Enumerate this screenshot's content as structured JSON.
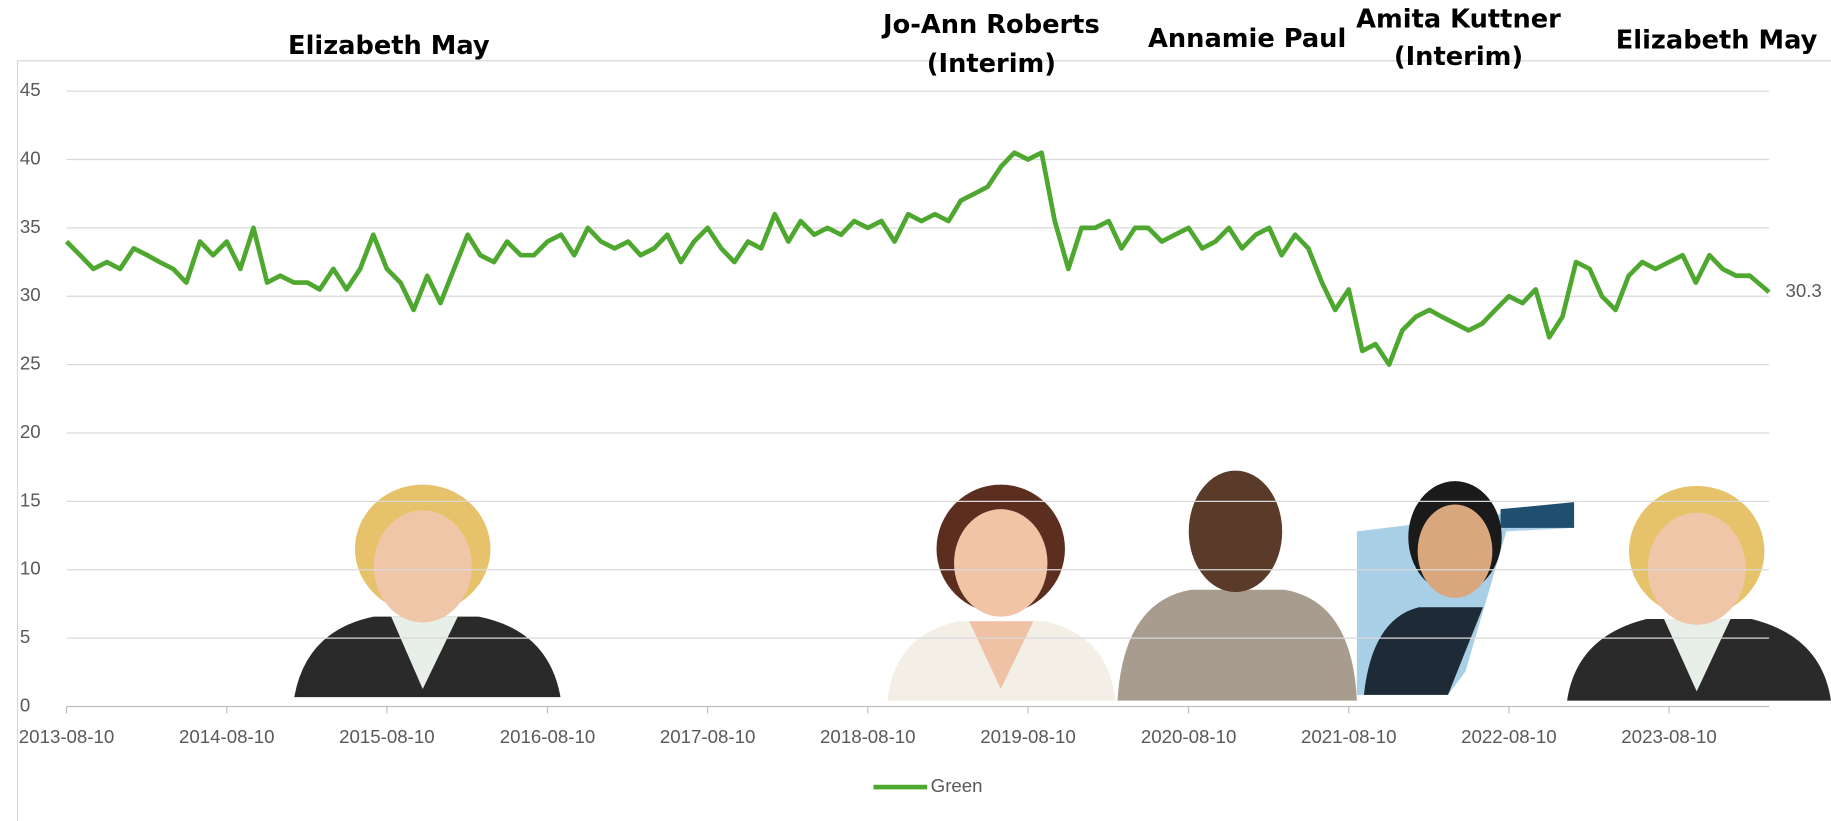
{
  "chart_data": {
    "type": "line",
    "annotations": [
      {
        "text": [
          "Elizabeth May"
        ]
      },
      {
        "text": [
          "Jo-Ann Roberts",
          "(Interim)"
        ]
      },
      {
        "text": [
          "Annamie Paul"
        ]
      },
      {
        "text": [
          "Amita Kuttner",
          "(Interim)"
        ]
      },
      {
        "text": [
          "Elizabeth May"
        ]
      }
    ],
    "x": [
      "2013-08-10",
      "2013-09-10",
      "2013-10-10",
      "2013-11-10",
      "2013-12-10",
      "2014-01-10",
      "2014-02-10",
      "2014-03-10",
      "2014-04-10",
      "2014-05-10",
      "2014-06-10",
      "2014-07-10",
      "2014-08-10",
      "2014-09-10",
      "2014-10-10",
      "2014-11-10",
      "2014-12-10",
      "2015-01-10",
      "2015-02-10",
      "2015-03-10",
      "2015-04-10",
      "2015-05-10",
      "2015-06-10",
      "2015-07-10",
      "2015-08-10",
      "2015-09-10",
      "2015-10-10",
      "2015-11-10",
      "2015-12-10",
      "2016-01-10",
      "2016-02-10",
      "2016-03-10",
      "2016-04-10",
      "2016-05-10",
      "2016-06-10",
      "2016-07-10",
      "2016-08-10",
      "2016-09-10",
      "2016-10-10",
      "2016-11-10",
      "2016-12-10",
      "2017-01-10",
      "2017-02-10",
      "2017-03-10",
      "2017-04-10",
      "2017-05-10",
      "2017-06-10",
      "2017-07-10",
      "2017-08-10",
      "2017-09-10",
      "2017-10-10",
      "2017-11-10",
      "2017-12-10",
      "2018-01-10",
      "2018-02-10",
      "2018-03-10",
      "2018-04-10",
      "2018-05-10",
      "2018-06-10",
      "2018-07-10",
      "2018-08-10",
      "2018-09-10",
      "2018-10-10",
      "2018-11-10",
      "2018-12-10",
      "2019-01-10",
      "2019-02-10",
      "2019-03-10",
      "2019-04-10",
      "2019-05-10",
      "2019-06-10",
      "2019-07-10",
      "2019-08-10",
      "2019-09-10",
      "2019-10-10",
      "2019-11-10",
      "2019-12-10",
      "2020-01-10",
      "2020-02-10",
      "2020-03-10",
      "2020-04-10",
      "2020-05-10",
      "2020-06-10",
      "2020-07-10",
      "2020-08-10",
      "2020-09-10",
      "2020-10-10",
      "2020-11-10",
      "2020-12-10",
      "2021-01-10",
      "2021-02-10",
      "2021-03-10",
      "2021-04-10",
      "2021-05-10",
      "2021-06-10",
      "2021-07-10",
      "2021-08-10",
      "2021-09-10",
      "2021-10-10",
      "2021-11-10",
      "2021-12-10",
      "2022-01-10",
      "2022-02-10",
      "2022-03-10",
      "2022-04-10",
      "2022-05-10",
      "2022-06-10",
      "2022-07-10",
      "2022-08-10",
      "2022-09-10",
      "2022-10-10",
      "2022-11-10",
      "2022-12-10",
      "2023-01-10",
      "2023-02-10",
      "2023-03-10",
      "2023-04-10",
      "2023-05-10",
      "2023-06-10",
      "2023-07-10",
      "2023-08-10",
      "2023-09-10",
      "2023-10-10",
      "2023-11-10",
      "2023-12-10",
      "2024-01-10",
      "2024-02-10",
      "2024-03-25"
    ],
    "series": [
      {
        "name": "Green",
        "color": "#4ea72e",
        "values": [
          34,
          33,
          32,
          32.5,
          32,
          33.5,
          33,
          32.5,
          32,
          31,
          34,
          33,
          34,
          32,
          35,
          31,
          31.5,
          31,
          31,
          30.5,
          32,
          30.5,
          32,
          34.5,
          32,
          31,
          29,
          31.5,
          29.5,
          32,
          34.5,
          33,
          32.5,
          34,
          33,
          33,
          34,
          34.5,
          33,
          35,
          34,
          33.5,
          34,
          33,
          33.5,
          34.5,
          32.5,
          34,
          35,
          33.5,
          32.5,
          34,
          33.5,
          36,
          34,
          35.5,
          34.5,
          35,
          34.5,
          35.5,
          35,
          35.5,
          34,
          36,
          35.5,
          36,
          35.5,
          37,
          37.5,
          38,
          39.5,
          40.5,
          40,
          40.5,
          35.5,
          32,
          35,
          35,
          35.5,
          33.5,
          35,
          35,
          34,
          34.5,
          35,
          33.5,
          34,
          35,
          33.5,
          34.5,
          35,
          33,
          34.5,
          33.5,
          31,
          29,
          30.5,
          26,
          26.5,
          25,
          27.5,
          28.5,
          29,
          28.5,
          28,
          27.5,
          28,
          29,
          30,
          29.5,
          30.5,
          27,
          28.5,
          32.5,
          32,
          30,
          29,
          31.5,
          32.5,
          32,
          32.5,
          33,
          31,
          33,
          32,
          31.5,
          31.5,
          30.3
        ]
      }
    ],
    "xlim": [
      "2013-08-10",
      "2024-03-25"
    ],
    "xticks": [
      "2013-08-10",
      "2014-08-10",
      "2015-08-10",
      "2016-08-10",
      "2017-08-10",
      "2018-08-10",
      "2019-08-10",
      "2020-08-10",
      "2021-08-10",
      "2022-08-10",
      "2023-08-10"
    ],
    "ylim": [
      0,
      45
    ],
    "yticks": [
      0,
      5,
      10,
      15,
      20,
      25,
      30,
      35,
      40,
      45
    ],
    "grid": true,
    "legend": "bottom"
  }
}
